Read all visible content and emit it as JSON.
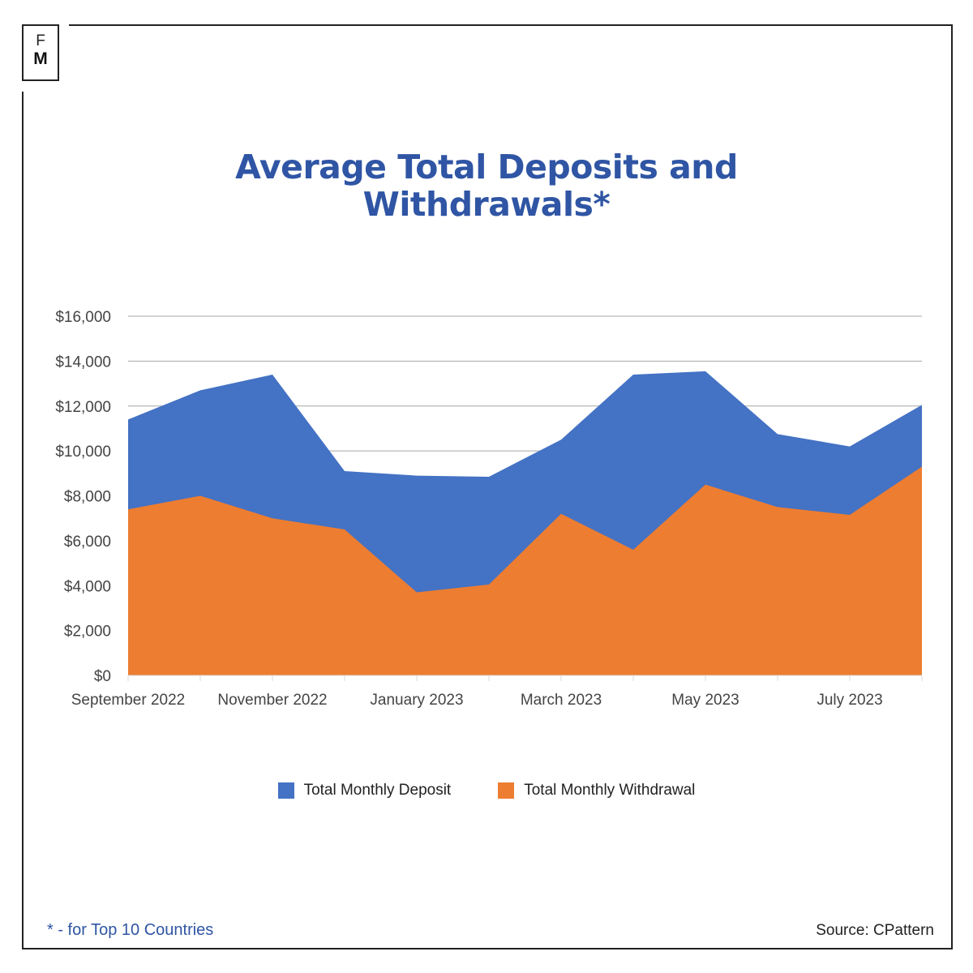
{
  "logo": {
    "top": "F",
    "bottom": "M"
  },
  "footnote": "* - for Top 10 Countries",
  "source": "Source: CPattern",
  "chart_data": {
    "type": "area",
    "title_lines": [
      "Average Total Deposits and",
      "Withdrawals*"
    ],
    "x": [
      "2022-09",
      "2022-10",
      "2022-11",
      "2022-12",
      "2023-01",
      "2023-02",
      "2023-03",
      "2023-04",
      "2023-05",
      "2023-06",
      "2023-07",
      "2023-08"
    ],
    "x_tick_labels": [
      {
        "x": "2022-09",
        "label": "September 2022"
      },
      {
        "x": "2022-11",
        "label": "November 2022"
      },
      {
        "x": "2023-01",
        "label": "January 2023"
      },
      {
        "x": "2023-03",
        "label": "March 2023"
      },
      {
        "x": "2023-05",
        "label": "May 2023"
      },
      {
        "x": "2023-07",
        "label": "July 2023"
      }
    ],
    "y_tick_labels": [
      "$0",
      "$2,000",
      "$4,000",
      "$6,000",
      "$8,000",
      "$10,000",
      "$12,000",
      "$14,000",
      "$16,000"
    ],
    "ylim": [
      0,
      16000
    ],
    "grid": true,
    "legend_position": "bottom",
    "series": [
      {
        "name": "Total Monthly Deposit",
        "color": "#4472c4",
        "values": [
          11400,
          12700,
          13400,
          9100,
          8900,
          8850,
          10500,
          13400,
          13550,
          10750,
          10200,
          12050
        ]
      },
      {
        "name": "Total Monthly Withdrawal",
        "color": "#ed7d31",
        "values": [
          7400,
          8000,
          7000,
          6500,
          3700,
          4050,
          7200,
          5600,
          8500,
          7500,
          7150,
          9300
        ]
      }
    ]
  }
}
